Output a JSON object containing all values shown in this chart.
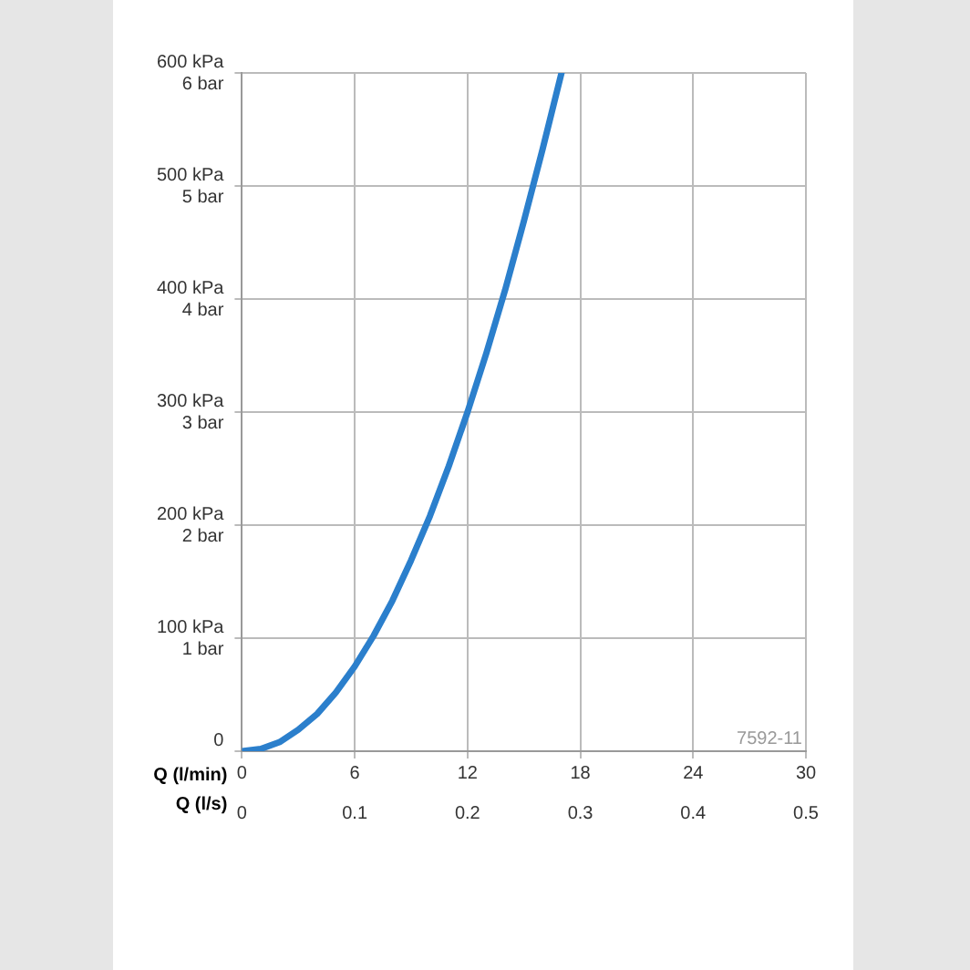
{
  "chart_data": {
    "type": "line",
    "xlabel": "Q (l/min)",
    "x2label": "Q (l/s)",
    "x": [
      0,
      1,
      2,
      3,
      4,
      5,
      6,
      7,
      8,
      9,
      10,
      11,
      12,
      13,
      14,
      15,
      16,
      17
    ],
    "series": [
      {
        "color": "#2b7fcc",
        "values": [
          0,
          2,
          8,
          19,
          33,
          52,
          75,
          102,
          133,
          169,
          208,
          252,
          300,
          352,
          408,
          469,
          533,
          600
        ]
      }
    ],
    "xlim": [
      0,
      30
    ],
    "xticks": [
      0,
      6,
      12,
      18,
      24,
      30
    ],
    "x2lim": [
      0,
      0.5
    ],
    "x2ticks": [
      0,
      0.1,
      0.2,
      0.3,
      0.4,
      0.5
    ],
    "ylim": [
      0,
      600
    ],
    "yticks": [
      0,
      {
        "value": 100,
        "label": "100 kPa"
      },
      {
        "value": 200,
        "label": "200 kPa"
      },
      {
        "value": 300,
        "label": "300 kPa"
      },
      {
        "value": 400,
        "label": "400 kPa"
      },
      {
        "value": 500,
        "label": "500 kPa"
      },
      {
        "value": 600,
        "label": "600 kPa"
      }
    ],
    "y2lim": [
      0,
      6
    ],
    "y2ticks": [
      {
        "value": 0,
        "label": null
      },
      {
        "value": 1,
        "label": "1 bar"
      },
      {
        "value": 2,
        "label": "2 bar"
      },
      {
        "value": 3,
        "label": "3 bar"
      },
      {
        "value": 4,
        "label": "4 bar"
      },
      {
        "value": 5,
        "label": "5 bar"
      },
      {
        "value": 6,
        "label": "6 bar"
      }
    ],
    "grid": true,
    "marker": "none",
    "line_style": "solid",
    "legend": false,
    "annotations": [
      "7592-11"
    ]
  }
}
